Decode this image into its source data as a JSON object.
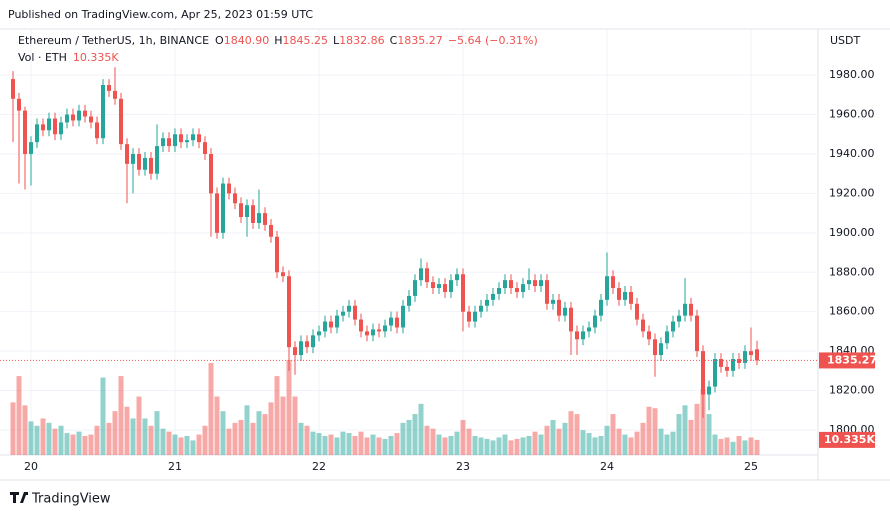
{
  "header": {
    "published": "Published on TradingView.com, Apr 25, 2023 01:59 UTC"
  },
  "footer": {
    "brand": "TradingView"
  },
  "chart_data": {
    "type": "candlestick",
    "symbol": "Ethereum / TetherUS, 1h, BINANCE",
    "ohlc_legend": [
      {
        "key": "O",
        "value": "1840.90"
      },
      {
        "key": "H",
        "value": "1845.25"
      },
      {
        "key": "L",
        "value": "1832.86"
      },
      {
        "key": "C",
        "value": "1835.27"
      }
    ],
    "change": "−5.64 (−0.31%)",
    "volume_legend": "Vol · ETH",
    "y_axis_unit": "USDT",
    "categories": [
      null,
      null,
      null,
      "20",
      null,
      null,
      null,
      null,
      null,
      null,
      null,
      null,
      null,
      null,
      null,
      null,
      null,
      null,
      null,
      null,
      null,
      null,
      null,
      null,
      null,
      null,
      null,
      "21",
      null,
      null,
      null,
      null,
      null,
      null,
      null,
      null,
      null,
      null,
      null,
      null,
      null,
      null,
      null,
      null,
      null,
      null,
      null,
      null,
      null,
      null,
      null,
      "22",
      null,
      null,
      null,
      null,
      null,
      null,
      null,
      null,
      null,
      null,
      null,
      null,
      null,
      null,
      null,
      null,
      null,
      null,
      null,
      null,
      null,
      null,
      null,
      "23",
      null,
      null,
      null,
      null,
      null,
      null,
      null,
      null,
      null,
      null,
      null,
      null,
      null,
      null,
      null,
      null,
      null,
      null,
      null,
      null,
      null,
      null,
      null,
      "24",
      null,
      null,
      null,
      null,
      null,
      null,
      null,
      null,
      null,
      null,
      null,
      null,
      null,
      null,
      null,
      null,
      null,
      null,
      null,
      null,
      null,
      null,
      null,
      "25",
      null
    ],
    "open": [
      1978,
      1968,
      1962,
      1940,
      1946,
      1955,
      1952,
      1958,
      1950,
      1956,
      1960,
      1957,
      1962,
      1959,
      1956,
      1948,
      1975,
      1972,
      1968,
      1945,
      1935,
      1940,
      1932,
      1938,
      1930,
      1944,
      1948,
      1944,
      1950,
      1946,
      1947,
      1950,
      1946,
      1940,
      1920,
      1900,
      1925,
      1920,
      1915,
      1908,
      1914,
      1905,
      1910,
      1904,
      1898,
      1880,
      1878,
      1842,
      1838,
      1845,
      1842,
      1848,
      1850,
      1855,
      1852,
      1858,
      1860,
      1863,
      1856,
      1850,
      1848,
      1851,
      1850,
      1853,
      1857,
      1852,
      1863,
      1868,
      1876,
      1882,
      1875,
      1872,
      1874,
      1870,
      1876,
      1879,
      1860,
      1855,
      1860,
      1863,
      1866,
      1869,
      1872,
      1876,
      1872,
      1870,
      1874,
      1876,
      1873,
      1876,
      1864,
      1866,
      1858,
      1862,
      1850,
      1846,
      1850,
      1852,
      1858,
      1866,
      1878,
      1872,
      1866,
      1870,
      1864,
      1856,
      1850,
      1846,
      1838,
      1844,
      1850,
      1855,
      1858,
      1864,
      1858,
      1840,
      1818,
      1822,
      1836,
      1832,
      1830,
      1836,
      1834,
      1840,
      1840.9
    ],
    "high": [
      1982,
      1971,
      1964,
      1949,
      1958,
      1958,
      1961,
      1961,
      1959,
      1963,
      1963,
      1965,
      1965,
      1962,
      1959,
      1978,
      1978,
      1984,
      1971,
      1948,
      1943,
      1943,
      1941,
      1941,
      1955,
      1951,
      1951,
      1953,
      1953,
      1950,
      1953,
      1953,
      1949,
      1943,
      1923,
      1928,
      1928,
      1923,
      1918,
      1917,
      1917,
      1922,
      1913,
      1907,
      1901,
      1883,
      1881,
      1845,
      1848,
      1848,
      1851,
      1853,
      1858,
      1858,
      1861,
      1863,
      1866,
      1866,
      1859,
      1853,
      1854,
      1854,
      1856,
      1860,
      1860,
      1866,
      1871,
      1879,
      1887,
      1885,
      1878,
      1877,
      1877,
      1879,
      1882,
      1882,
      1863,
      1863,
      1866,
      1869,
      1872,
      1875,
      1879,
      1879,
      1875,
      1877,
      1882,
      1879,
      1879,
      1879,
      1869,
      1869,
      1865,
      1865,
      1853,
      1853,
      1855,
      1861,
      1869,
      1890,
      1881,
      1875,
      1873,
      1873,
      1867,
      1859,
      1853,
      1849,
      1847,
      1853,
      1858,
      1861,
      1877,
      1867,
      1861,
      1843,
      1825,
      1839,
      1839,
      1835,
      1839,
      1839,
      1843,
      1852,
      1845.25
    ],
    "low": [
      1946,
      1925,
      1922,
      1924,
      1943,
      1949,
      1949,
      1947,
      1947,
      1953,
      1954,
      1954,
      1956,
      1953,
      1945,
      1945,
      1969,
      1965,
      1942,
      1915,
      1920,
      1929,
      1929,
      1927,
      1927,
      1941,
      1941,
      1941,
      1943,
      1943,
      1944,
      1943,
      1937,
      1898,
      1897,
      1897,
      1917,
      1912,
      1905,
      1898,
      1902,
      1902,
      1901,
      1895,
      1877,
      1875,
      1830,
      1828,
      1835,
      1839,
      1839,
      1845,
      1847,
      1849,
      1849,
      1855,
      1857,
      1853,
      1847,
      1845,
      1845,
      1847,
      1847,
      1850,
      1849,
      1849,
      1860,
      1865,
      1873,
      1872,
      1869,
      1869,
      1867,
      1867,
      1873,
      1850,
      1852,
      1852,
      1857,
      1860,
      1863,
      1866,
      1869,
      1869,
      1867,
      1867,
      1871,
      1870,
      1870,
      1861,
      1861,
      1855,
      1855,
      1838,
      1838,
      1843,
      1847,
      1849,
      1855,
      1863,
      1869,
      1863,
      1863,
      1861,
      1853,
      1847,
      1843,
      1827,
      1835,
      1841,
      1847,
      1852,
      1855,
      1855,
      1837,
      1806,
      1810,
      1819,
      1829,
      1827,
      1827,
      1831,
      1831,
      1835,
      1832.86
    ],
    "close": [
      1968,
      1962,
      1940,
      1946,
      1955,
      1952,
      1958,
      1950,
      1956,
      1960,
      1957,
      1962,
      1959,
      1956,
      1948,
      1975,
      1972,
      1968,
      1945,
      1935,
      1940,
      1932,
      1938,
      1930,
      1944,
      1948,
      1944,
      1950,
      1946,
      1947,
      1950,
      1946,
      1940,
      1920,
      1900,
      1925,
      1920,
      1915,
      1908,
      1914,
      1905,
      1910,
      1904,
      1898,
      1880,
      1878,
      1842,
      1838,
      1845,
      1842,
      1848,
      1850,
      1855,
      1852,
      1858,
      1860,
      1863,
      1856,
      1850,
      1848,
      1851,
      1850,
      1853,
      1857,
      1852,
      1863,
      1868,
      1876,
      1882,
      1875,
      1872,
      1874,
      1870,
      1876,
      1879,
      1860,
      1855,
      1860,
      1863,
      1866,
      1869,
      1872,
      1876,
      1872,
      1870,
      1874,
      1876,
      1873,
      1876,
      1864,
      1866,
      1858,
      1862,
      1850,
      1846,
      1850,
      1852,
      1858,
      1866,
      1878,
      1872,
      1866,
      1870,
      1864,
      1856,
      1850,
      1846,
      1838,
      1844,
      1850,
      1855,
      1858,
      1864,
      1858,
      1840,
      1818,
      1822,
      1836,
      1832,
      1830,
      1836,
      1834,
      1840,
      1838,
      1835.27
    ],
    "volume": [
      36000,
      54000,
      34000,
      23000,
      20000,
      25000,
      22000,
      18000,
      20000,
      15000,
      14000,
      16000,
      13000,
      14000,
      20000,
      53000,
      22000,
      30000,
      54000,
      33000,
      25000,
      40000,
      25000,
      20000,
      30000,
      18000,
      16000,
      14000,
      12000,
      13000,
      10000,
      14000,
      20000,
      63000,
      40000,
      30000,
      18000,
      22000,
      24000,
      34000,
      22000,
      30000,
      28000,
      36000,
      54000,
      40000,
      65000,
      40000,
      22000,
      20000,
      16000,
      15000,
      13000,
      14000,
      12000,
      16000,
      15000,
      13000,
      16000,
      12000,
      14000,
      12000,
      11000,
      13000,
      15000,
      22000,
      24000,
      28000,
      35000,
      20000,
      18000,
      14000,
      12000,
      13000,
      16000,
      24000,
      18000,
      13000,
      12000,
      11000,
      10000,
      12000,
      14000,
      10000,
      11000,
      12000,
      13000,
      16000,
      14000,
      20000,
      24000,
      18000,
      22000,
      30000,
      28000,
      17000,
      15000,
      12000,
      13000,
      20000,
      28000,
      18000,
      14000,
      12000,
      16000,
      22000,
      33000,
      32000,
      18000,
      14000,
      16000,
      28000,
      34000,
      24000,
      35000,
      45000,
      28000,
      14000,
      11000,
      12000,
      9000,
      13000,
      10000,
      12000,
      10335
    ],
    "up_color": "#26a69a",
    "down_color": "#ef5350",
    "ylim": [
      1787.3,
      2003.4
    ],
    "yticks": [
      {
        "value": 1800,
        "label": "1800.00"
      },
      {
        "value": 1820,
        "label": "1820.00"
      },
      {
        "value": 1840,
        "label": "1840.00"
      },
      {
        "value": 1860,
        "label": "1860.00"
      },
      {
        "value": 1880,
        "label": "1880.00"
      },
      {
        "value": 1900,
        "label": "1900.00"
      },
      {
        "value": 1920,
        "label": "1920.00"
      },
      {
        "value": 1940,
        "label": "1940.00"
      },
      {
        "value": 1960,
        "label": "1960.00"
      },
      {
        "value": 1980,
        "label": "1980.00"
      }
    ],
    "grid": true,
    "last_price": {
      "value": 1835.27,
      "label": "1835.27"
    },
    "last_volume": {
      "value": 10335,
      "label": "10.335K"
    }
  }
}
